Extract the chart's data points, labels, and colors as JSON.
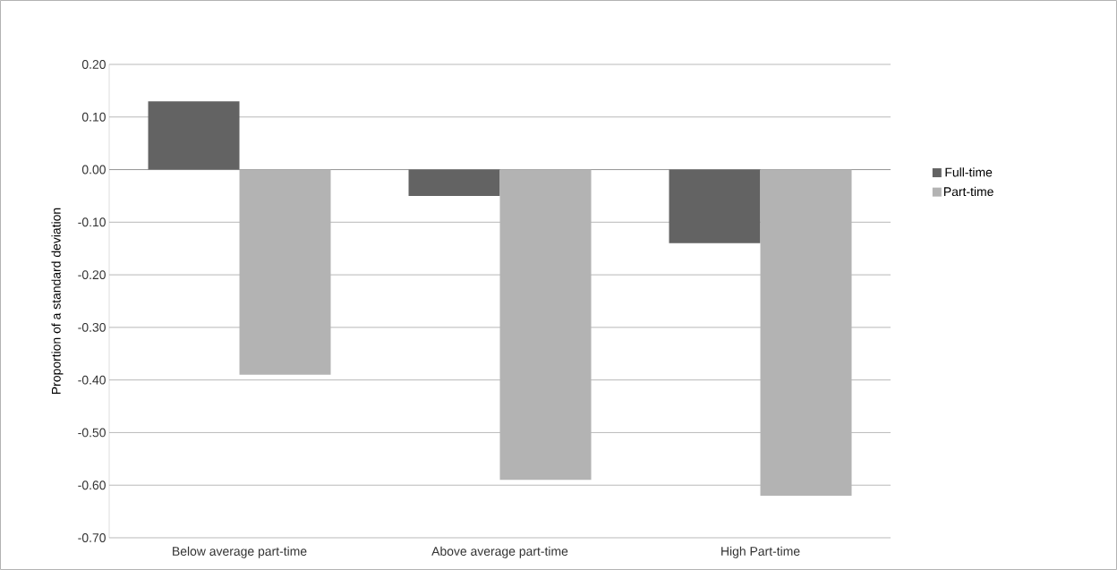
{
  "chart_data": {
    "type": "bar",
    "ylabel": "Proportion of a standard deviation",
    "categories": [
      "Below average part-time",
      "Above average part-time",
      "High Part-time"
    ],
    "series": [
      {
        "name": "Full-time",
        "color": "#636363",
        "values": [
          0.13,
          -0.05,
          -0.14
        ]
      },
      {
        "name": "Part-time",
        "color": "#b3b3b3",
        "values": [
          -0.39,
          -0.59,
          -0.62
        ]
      }
    ],
    "ylim": [
      -0.7,
      0.2
    ],
    "yticks": [
      {
        "value": 0.2,
        "label": "0.20"
      },
      {
        "value": 0.1,
        "label": "0.10"
      },
      {
        "value": 0,
        "label": "0.00"
      },
      {
        "value": -0.1,
        "label": "-0.10"
      },
      {
        "value": -0.2,
        "label": "-0.20"
      },
      {
        "value": -0.3,
        "label": "-0.30"
      },
      {
        "value": -0.4,
        "label": "-0.40"
      },
      {
        "value": -0.5,
        "label": "-0.50"
      },
      {
        "value": -0.6,
        "label": "-0.60"
      },
      {
        "value": -0.7,
        "label": "-0.70"
      }
    ],
    "grid": "y",
    "legend": "right"
  }
}
